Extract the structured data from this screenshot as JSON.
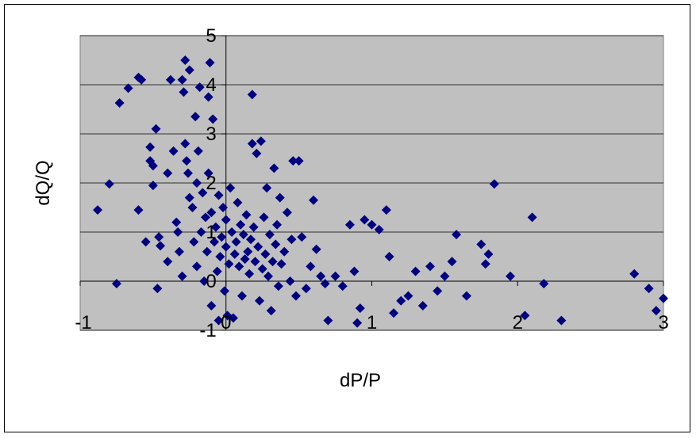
{
  "chart_data": {
    "type": "scatter",
    "title": "",
    "xlabel": "dP/P",
    "ylabel": "dQ/Q",
    "xlim": [
      -1,
      3
    ],
    "ylim": [
      -1,
      5
    ],
    "x_ticks": [
      "-1",
      "0",
      "1",
      "2",
      "3"
    ],
    "y_ticks": [
      "-1",
      "0",
      "1",
      "2",
      "3",
      "4",
      "5"
    ],
    "grid": "horizontal major gridlines",
    "legend": "none",
    "colors": {
      "plot_area": "#c0c0c0",
      "marker": "#000080",
      "gridline": "#000000"
    },
    "marker": "diamond",
    "series": [
      {
        "points": [
          [
            -0.88,
            1.45
          ],
          [
            -0.8,
            1.98
          ],
          [
            -0.75,
            -0.05
          ],
          [
            -0.73,
            3.63
          ],
          [
            -0.67,
            3.93
          ],
          [
            -0.6,
            4.15
          ],
          [
            -0.58,
            4.1
          ],
          [
            -0.6,
            1.45
          ],
          [
            -0.55,
            0.8
          ],
          [
            -0.52,
            2.73
          ],
          [
            -0.52,
            2.45
          ],
          [
            -0.5,
            2.35
          ],
          [
            -0.5,
            1.95
          ],
          [
            -0.48,
            3.1
          ],
          [
            -0.47,
            -0.15
          ],
          [
            -0.46,
            0.9
          ],
          [
            -0.45,
            0.72
          ],
          [
            -0.4,
            2.2
          ],
          [
            -0.4,
            0.4
          ],
          [
            -0.38,
            4.1
          ],
          [
            -0.36,
            2.65
          ],
          [
            -0.34,
            1.2
          ],
          [
            -0.33,
            1.0
          ],
          [
            -0.32,
            0.6
          ],
          [
            -0.3,
            0.1
          ],
          [
            -0.3,
            4.1
          ],
          [
            -0.29,
            3.85
          ],
          [
            -0.28,
            4.5
          ],
          [
            -0.28,
            2.8
          ],
          [
            -0.27,
            2.45
          ],
          [
            -0.26,
            2.2
          ],
          [
            -0.25,
            4.3
          ],
          [
            -0.25,
            1.7
          ],
          [
            -0.23,
            1.5
          ],
          [
            -0.22,
            0.8
          ],
          [
            -0.21,
            3.35
          ],
          [
            -0.2,
            2.0
          ],
          [
            -0.2,
            0.3
          ],
          [
            -0.19,
            2.65
          ],
          [
            -0.18,
            3.95
          ],
          [
            -0.17,
            1.0
          ],
          [
            -0.16,
            1.8
          ],
          [
            -0.15,
            0.0
          ],
          [
            -0.14,
            1.3
          ],
          [
            -0.13,
            0.6
          ],
          [
            -0.12,
            3.75
          ],
          [
            -0.12,
            2.2
          ],
          [
            -0.11,
            4.45
          ],
          [
            -0.1,
            1.4
          ],
          [
            -0.1,
            -0.5
          ],
          [
            -0.09,
            3.3
          ],
          [
            -0.08,
            0.8
          ],
          [
            -0.07,
            1.1
          ],
          [
            -0.06,
            0.2
          ],
          [
            -0.05,
            -0.8
          ],
          [
            -0.05,
            1.75
          ],
          [
            -0.04,
            0.5
          ],
          [
            -0.03,
            0.9
          ],
          [
            -0.02,
            1.5
          ],
          [
            -0.01,
            -0.2
          ],
          [
            0.0,
            1.25
          ],
          [
            0.0,
            0.7
          ],
          [
            0.01,
            -0.7
          ],
          [
            0.02,
            0.35
          ],
          [
            0.03,
            1.9
          ],
          [
            0.04,
            1.0
          ],
          [
            0.05,
            -0.75
          ],
          [
            0.06,
            0.55
          ],
          [
            0.07,
            0.8
          ],
          [
            0.08,
            1.6
          ],
          [
            0.09,
            0.3
          ],
          [
            0.1,
            1.15
          ],
          [
            0.11,
            -0.3
          ],
          [
            0.12,
            0.95
          ],
          [
            0.13,
            0.45
          ],
          [
            0.14,
            1.35
          ],
          [
            0.15,
            0.6
          ],
          [
            0.16,
            0.15
          ],
          [
            0.17,
            0.85
          ],
          [
            0.18,
            3.8
          ],
          [
            0.18,
            2.8
          ],
          [
            0.19,
            1.1
          ],
          [
            0.2,
            0.4
          ],
          [
            0.21,
            2.6
          ],
          [
            0.22,
            0.7
          ],
          [
            0.23,
            -0.4
          ],
          [
            0.24,
            2.85
          ],
          [
            0.25,
            0.25
          ],
          [
            0.26,
            1.3
          ],
          [
            0.27,
            0.55
          ],
          [
            0.28,
            1.9
          ],
          [
            0.29,
            0.1
          ],
          [
            0.3,
            0.95
          ],
          [
            0.31,
            -0.6
          ],
          [
            0.32,
            0.4
          ],
          [
            0.33,
            2.3
          ],
          [
            0.34,
            0.75
          ],
          [
            0.35,
            1.15
          ],
          [
            0.36,
            -0.1
          ],
          [
            0.37,
            1.7
          ],
          [
            0.38,
            0.35
          ],
          [
            0.4,
            0.6
          ],
          [
            0.42,
            1.4
          ],
          [
            0.44,
            0.0
          ],
          [
            0.45,
            0.85
          ],
          [
            0.46,
            2.45
          ],
          [
            0.48,
            -0.3
          ],
          [
            0.5,
            2.45
          ],
          [
            0.52,
            0.9
          ],
          [
            0.55,
            -0.15
          ],
          [
            0.58,
            0.3
          ],
          [
            0.6,
            1.65
          ],
          [
            0.62,
            0.65
          ],
          [
            0.65,
            0.1
          ],
          [
            0.68,
            -0.05
          ],
          [
            0.7,
            -0.8
          ],
          [
            0.75,
            0.1
          ],
          [
            0.8,
            -0.1
          ],
          [
            0.85,
            1.15
          ],
          [
            0.88,
            0.2
          ],
          [
            0.9,
            -0.85
          ],
          [
            0.92,
            -0.55
          ],
          [
            0.95,
            1.25
          ],
          [
            1.0,
            1.15
          ],
          [
            1.05,
            1.05
          ],
          [
            1.1,
            1.45
          ],
          [
            1.12,
            0.5
          ],
          [
            1.15,
            -0.65
          ],
          [
            1.2,
            -0.4
          ],
          [
            1.25,
            -0.3
          ],
          [
            1.3,
            0.2
          ],
          [
            1.35,
            -0.5
          ],
          [
            1.4,
            0.3
          ],
          [
            1.45,
            -0.2
          ],
          [
            1.5,
            0.1
          ],
          [
            1.55,
            0.4
          ],
          [
            1.58,
            0.95
          ],
          [
            1.65,
            -0.3
          ],
          [
            1.75,
            0.75
          ],
          [
            1.78,
            0.35
          ],
          [
            1.8,
            0.55
          ],
          [
            1.84,
            1.98
          ],
          [
            1.95,
            0.1
          ],
          [
            2.05,
            -0.7
          ],
          [
            2.1,
            1.3
          ],
          [
            2.18,
            -0.05
          ],
          [
            2.3,
            -0.8
          ],
          [
            2.8,
            0.15
          ],
          [
            2.9,
            -0.15
          ],
          [
            2.95,
            -0.6
          ],
          [
            3.0,
            -0.35
          ]
        ]
      }
    ]
  }
}
